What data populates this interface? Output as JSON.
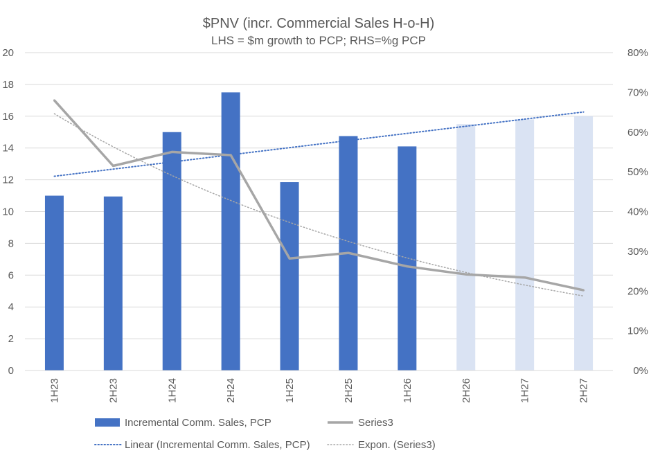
{
  "chart_data": {
    "type": "bar",
    "title": "$PNV (incr. Commercial Sales H-o-H)",
    "subtitle": "LHS = $m growth to PCP; RHS=%g PCP",
    "categories": [
      "1H23",
      "2H23",
      "1H24",
      "2H24",
      "1H25",
      "2H25",
      "1H26",
      "2H26",
      "1H27",
      "2H27"
    ],
    "series": [
      {
        "name": "Incremental Comm. Sales, PCP",
        "type": "bar",
        "axis": "left",
        "values": [
          11.0,
          10.95,
          15.0,
          17.5,
          11.85,
          14.75,
          14.1,
          15.5,
          15.8,
          16.0
        ],
        "forecast_from_index": 7,
        "color": "#4472C4",
        "forecast_color": "#DAE3F3"
      },
      {
        "name": "Series3",
        "type": "line",
        "axis": "right",
        "values": [
          0.68,
          0.515,
          0.55,
          0.542,
          0.282,
          0.296,
          0.262,
          0.242,
          0.234,
          0.202
        ],
        "color": "#A6A6A6"
      }
    ],
    "trendlines": [
      {
        "name": "Linear (Incremental Comm. Sales, PCP)",
        "kind": "linear",
        "of_series": 0,
        "color": "#4472C4"
      },
      {
        "name": "Expon. (Series3)",
        "kind": "exponential",
        "of_series": 1,
        "color": "#A6A6A6"
      }
    ],
    "y_left": {
      "min": 0,
      "max": 20,
      "step": 2,
      "ticks": [
        "0",
        "2",
        "4",
        "6",
        "8",
        "10",
        "12",
        "14",
        "16",
        "18",
        "20"
      ]
    },
    "y_right": {
      "min": 0,
      "max": 0.8,
      "step": 0.1,
      "ticks": [
        "0%",
        "10%",
        "20%",
        "30%",
        "40%",
        "50%",
        "60%",
        "70%",
        "80%"
      ]
    },
    "grid": true,
    "legend_position": "bottom"
  }
}
